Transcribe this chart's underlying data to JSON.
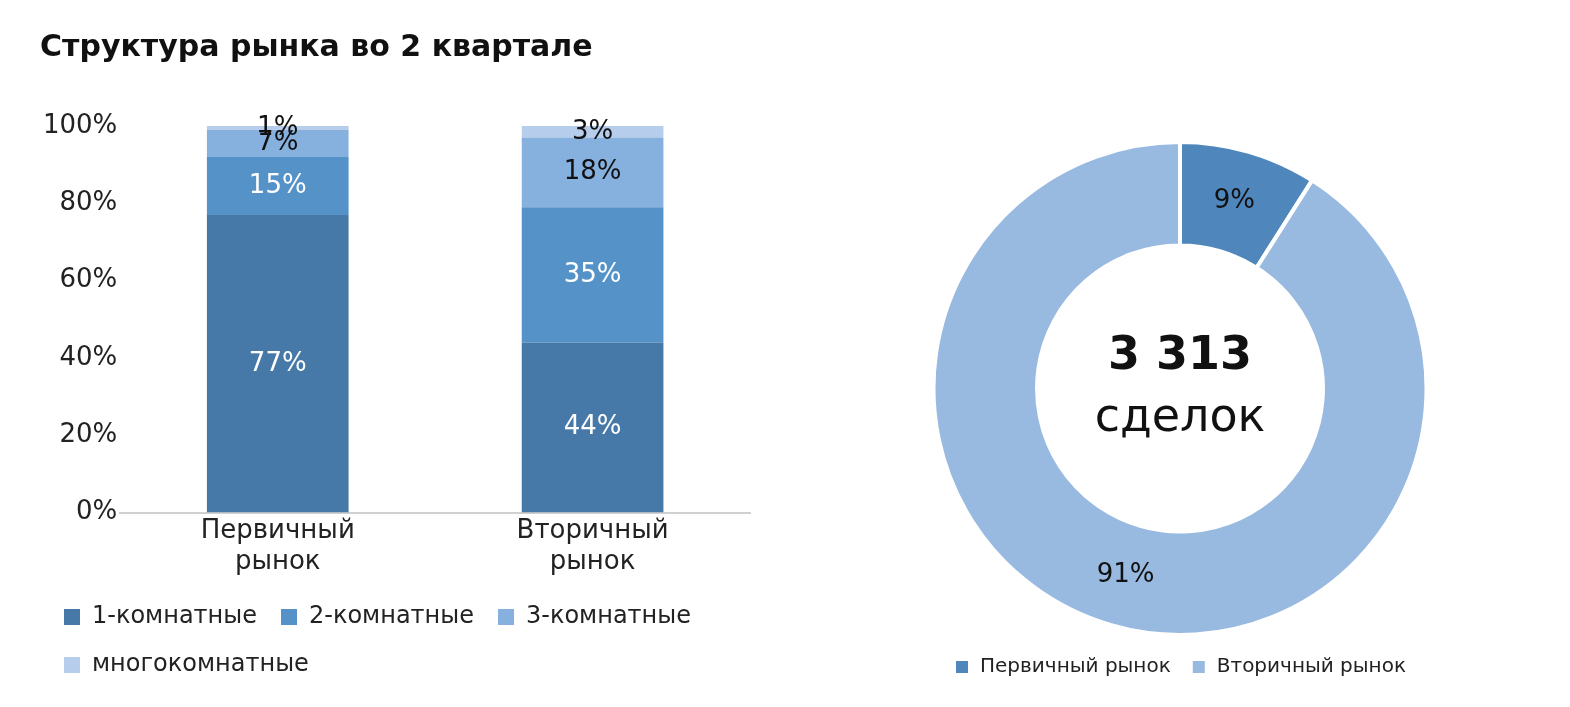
{
  "chart_data": [
    {
      "type": "bar",
      "title": "Структура рынка во 2 квартале",
      "categories": [
        "Первичный рынок",
        "Вторичный рынок"
      ],
      "stacked": true,
      "ylim": [
        0,
        100
      ],
      "yticks": [
        {
          "value": 0,
          "label": "0%"
        },
        {
          "value": 20,
          "label": "20%"
        },
        {
          "value": 40,
          "label": "40%"
        },
        {
          "value": 60,
          "label": "60%"
        },
        {
          "value": 80,
          "label": "80%"
        },
        {
          "value": 100,
          "label": "100%"
        }
      ],
      "grid": false,
      "legend": "bottom",
      "series": [
        {
          "name": "1-комнатные",
          "color": "#4679a8",
          "values": [
            77,
            44
          ],
          "value_labels": [
            "77%",
            "44%"
          ]
        },
        {
          "name": "2-комнатные",
          "color": "#5592c8",
          "values": [
            15,
            35
          ],
          "value_labels": [
            "15%",
            "35%"
          ]
        },
        {
          "name": "3-комнатные",
          "color": "#86b0de",
          "values": [
            7,
            18
          ],
          "value_labels": [
            "7%",
            "18%"
          ]
        },
        {
          "name": "многокомнатные",
          "color": "#b6cdec",
          "values": [
            1,
            3
          ],
          "value_labels": [
            "1%",
            "3%"
          ]
        }
      ]
    },
    {
      "type": "donut",
      "categories": [
        "Первичный рынок",
        "Вторичный рынок"
      ],
      "values": [
        9,
        91
      ],
      "colors": [
        "#4f86bc",
        "#98b9e0"
      ],
      "value_labels": [
        "9%",
        "91%"
      ],
      "annotations": [
        "3 313",
        "сделок"
      ],
      "legend": "bottom"
    }
  ]
}
